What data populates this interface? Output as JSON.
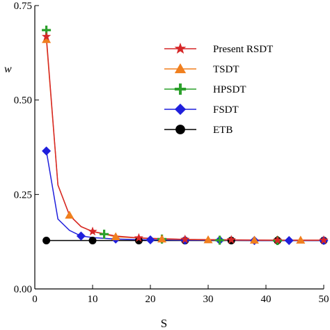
{
  "chart_data": {
    "type": "line",
    "xlabel": "S",
    "ylabel": "w",
    "xlim": [
      0,
      50
    ],
    "ylim": [
      0,
      0.75
    ],
    "xticks": [
      0,
      10,
      20,
      30,
      40,
      50
    ],
    "yticks": [
      0,
      0.25,
      0.5,
      0.75
    ],
    "ytick_labels": [
      "0.00",
      "0.25",
      "0.50",
      "0.75"
    ],
    "grid": false,
    "legend_placement": "top-right",
    "series": [
      {
        "name": "ETB",
        "color": "#000000",
        "marker": "circle",
        "x": [
          2,
          10,
          18,
          26,
          34,
          42,
          50
        ],
        "y": [
          0.128,
          0.128,
          0.128,
          0.128,
          0.128,
          0.128,
          0.128
        ],
        "line_x": [
          2,
          50
        ],
        "line_y": [
          0.128,
          0.128
        ]
      },
      {
        "name": "FSDT",
        "color": "#1f1fdc",
        "marker": "diamond",
        "x": [
          2,
          8,
          14,
          20,
          26,
          32,
          38,
          44,
          50
        ],
        "y": [
          0.365,
          0.14,
          0.132,
          0.13,
          0.129,
          0.129,
          0.128,
          0.128,
          0.128
        ],
        "line_x": [
          2,
          4,
          6,
          8,
          10,
          14,
          20,
          26,
          32,
          38,
          44,
          50
        ],
        "line_y": [
          0.365,
          0.185,
          0.155,
          0.14,
          0.136,
          0.132,
          0.13,
          0.129,
          0.129,
          0.128,
          0.128,
          0.128
        ]
      },
      {
        "name": "HPSDT",
        "color": "#2ca02c",
        "marker": "plus",
        "x": [
          2,
          12,
          22,
          32,
          42
        ],
        "y": [
          0.685,
          0.145,
          0.132,
          0.129,
          0.128
        ],
        "line_x": [],
        "line_y": []
      },
      {
        "name": "TSDT",
        "color": "#f07f1e",
        "marker": "triangle",
        "x": [
          2,
          6,
          14,
          22,
          30,
          38,
          46
        ],
        "y": [
          0.66,
          0.195,
          0.138,
          0.132,
          0.13,
          0.129,
          0.129
        ],
        "line_x": [
          2,
          4,
          6,
          8,
          10,
          14,
          22,
          30,
          38,
          46,
          50
        ],
        "line_y": [
          0.66,
          0.275,
          0.195,
          0.165,
          0.152,
          0.138,
          0.132,
          0.13,
          0.129,
          0.129,
          0.129
        ]
      },
      {
        "name": "Present RSDT",
        "color": "#d62728",
        "marker": "star",
        "x": [
          2,
          10,
          18,
          26,
          34,
          42,
          50
        ],
        "y": [
          0.668,
          0.152,
          0.135,
          0.131,
          0.13,
          0.129,
          0.129
        ],
        "line_x": [
          2,
          4,
          6,
          8,
          10,
          14,
          18,
          26,
          34,
          42,
          50
        ],
        "line_y": [
          0.668,
          0.275,
          0.195,
          0.165,
          0.152,
          0.14,
          0.135,
          0.131,
          0.13,
          0.129,
          0.129
        ]
      }
    ],
    "legend_order": [
      "Present RSDT",
      "TSDT",
      "HPSDT",
      "FSDT",
      "ETB"
    ]
  }
}
